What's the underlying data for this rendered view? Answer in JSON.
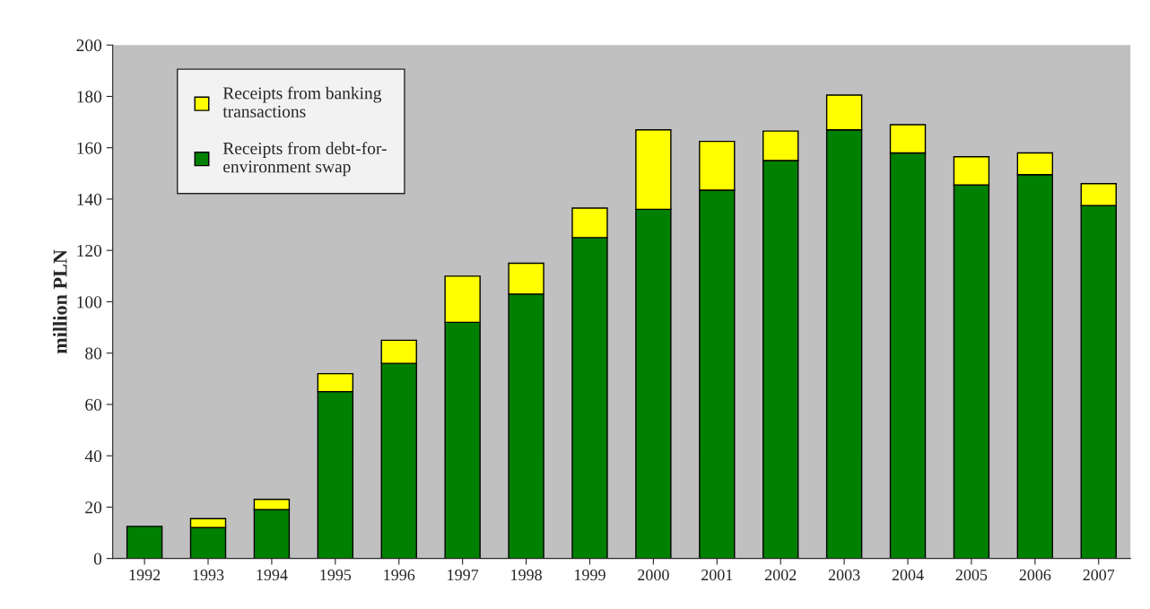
{
  "chart_data": {
    "type": "bar",
    "stacked": true,
    "ylabel": "million PLN",
    "categories": [
      "1992",
      "1993",
      "1994",
      "1995",
      "1996",
      "1997",
      "1998",
      "1999",
      "2000",
      "2001",
      "2002",
      "2003",
      "2004",
      "2005",
      "2006",
      "2007"
    ],
    "series": [
      {
        "name": "Receipts from debt-for-environment swap",
        "color": "#008000",
        "values": [
          12.5,
          12,
          19,
          65,
          76,
          92,
          103,
          125,
          136,
          143.5,
          155,
          167,
          158,
          145.5,
          149.5,
          137.5
        ]
      },
      {
        "name": "Receipts from banking transactions",
        "color": "#ffff00",
        "values": [
          null,
          3.5,
          4,
          7,
          9,
          18,
          12,
          11.5,
          31,
          19,
          11.5,
          13.5,
          11,
          11,
          8.5,
          8.5
        ]
      }
    ],
    "ylim": [
      0,
      200
    ],
    "yticks": [
      0,
      20,
      40,
      60,
      80,
      100,
      120,
      140,
      160,
      180,
      200
    ],
    "grid": false,
    "legend": "top left"
  }
}
